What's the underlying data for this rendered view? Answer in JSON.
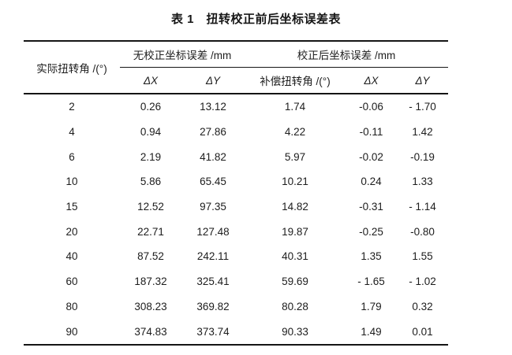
{
  "page": {
    "background": "#ffffff",
    "text_color": "#1d1d1d",
    "rule_color": "#151515"
  },
  "caption": "表 1　扭转校正前后坐标误差表",
  "table": {
    "group_headers": {
      "row_axis": "实际扭转角 /(°)",
      "uncorrected": "无校正坐标误差 /mm",
      "corrected": "校正后坐标误差 /mm"
    },
    "sub_headers": {
      "dx_uncorrected": "ΔX",
      "dy_uncorrected": "ΔY",
      "comp_angle": "补偿扭转角 /(°)",
      "dx_corrected": "ΔX",
      "dy_corrected": "ΔY"
    },
    "rows": [
      [
        "2",
        "0.26",
        "13.12",
        "1.74",
        "-0.06",
        "- 1.70"
      ],
      [
        "4",
        "0.94",
        "27.86",
        "4.22",
        "-0.11",
        "1.42"
      ],
      [
        "6",
        "2.19",
        "41.82",
        "5.97",
        "-0.02",
        "-0.19"
      ],
      [
        "10",
        "5.86",
        "65.45",
        "10.21",
        "0.24",
        "1.33"
      ],
      [
        "15",
        "12.52",
        "97.35",
        "14.82",
        "-0.31",
        "- 1.14"
      ],
      [
        "20",
        "22.71",
        "127.48",
        "19.87",
        "-0.25",
        "-0.80"
      ],
      [
        "40",
        "87.52",
        "242.11",
        "40.31",
        "1.35",
        "1.55"
      ],
      [
        "60",
        "187.32",
        "325.41",
        "59.69",
        "- 1.65",
        "- 1.02"
      ],
      [
        "80",
        "308.23",
        "369.82",
        "80.28",
        "1.79",
        "0.32"
      ],
      [
        "90",
        "374.83",
        "373.74",
        "90.33",
        "1.49",
        "0.01"
      ]
    ]
  }
}
